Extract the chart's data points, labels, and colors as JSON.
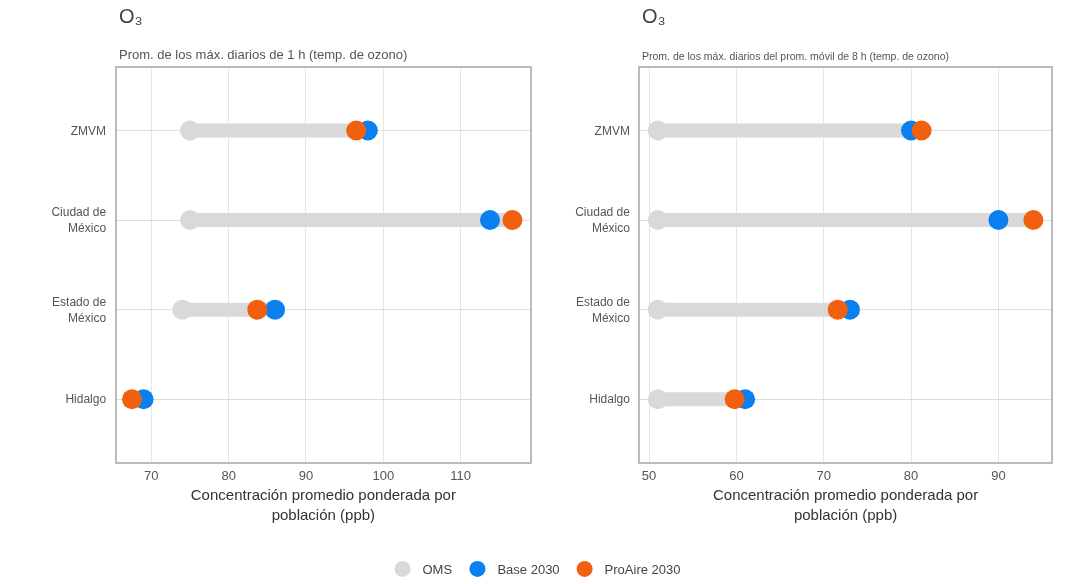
{
  "chart_data": [
    {
      "type": "scatter",
      "title": "O₃",
      "subtitle": "Prom. de los máx. diarios de 1 h (temp. de ozono)",
      "xlabel": "Concentración promedio ponderada por población (ppb)",
      "orientation": "horizontal",
      "categories": [
        "ZMVM",
        "Ciudad de México",
        "Estado de México",
        "Hidalgo"
      ],
      "xlim": [
        65.5,
        119
      ],
      "xticks": [
        70,
        80,
        90,
        100,
        110
      ],
      "grid": true,
      "marker": "circle",
      "legend": "bottom",
      "series": [
        {
          "name": "OMS",
          "color": "#d9d9d9",
          "values": [
            75,
            75,
            74,
            null
          ]
        },
        {
          "name": "Base 2030",
          "color": "#0a7ff0",
          "values": [
            98,
            113.8,
            86,
            69
          ]
        },
        {
          "name": "ProAire 2030",
          "color": "#f0600f",
          "values": [
            96.5,
            116.7,
            83.7,
            67.5
          ]
        }
      ]
    },
    {
      "type": "scatter",
      "title": "O₃",
      "subtitle": "Prom. de los máx. diarios del prom. móvil de 8 h (temp. de ozono)",
      "xlabel": "Concentración promedio ponderada por población (ppb)",
      "orientation": "horizontal",
      "categories": [
        "ZMVM",
        "Ciudad de México",
        "Estado de México",
        "Hidalgo"
      ],
      "xlim": [
        49,
        96
      ],
      "xticks": [
        50,
        60,
        70,
        80,
        90
      ],
      "grid": true,
      "marker": "circle",
      "legend": "bottom",
      "series": [
        {
          "name": "OMS",
          "color": "#d9d9d9",
          "values": [
            51,
            51,
            51,
            51
          ]
        },
        {
          "name": "Base 2030",
          "color": "#0a7ff0",
          "values": [
            80,
            90,
            73,
            61
          ]
        },
        {
          "name": "ProAire 2030",
          "color": "#f0600f",
          "values": [
            81.2,
            94,
            71.6,
            59.8
          ]
        }
      ]
    }
  ]
}
